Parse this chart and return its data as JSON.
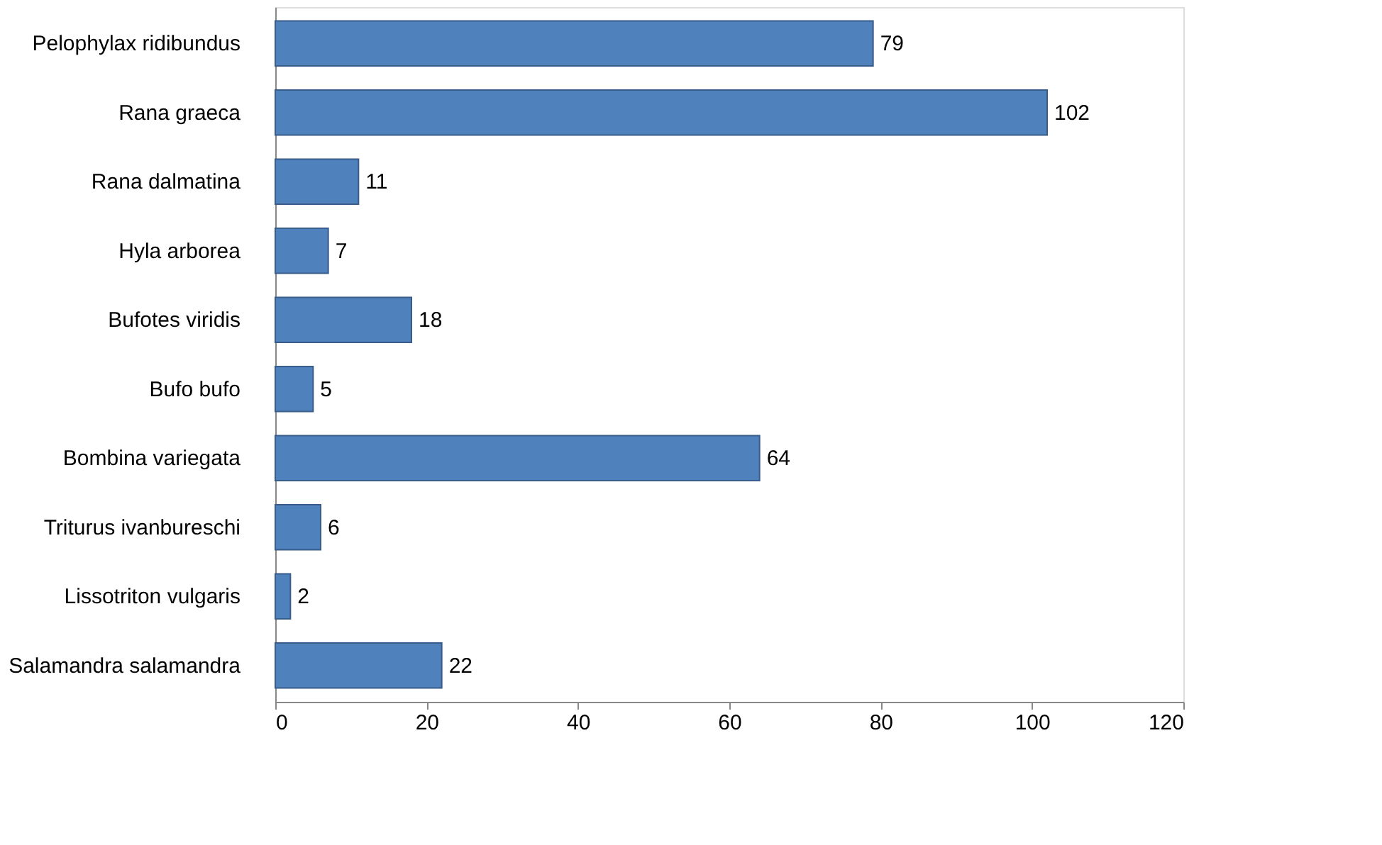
{
  "chart_data": {
    "type": "bar",
    "orientation": "horizontal",
    "categories": [
      "Pelophylax ridibundus",
      "Rana graeca",
      "Rana dalmatina",
      "Hyla arborea",
      "Bufotes viridis",
      "Bufo bufo",
      "Bombina variegata",
      "Triturus ivanbureschi",
      "Lissotriton vulgaris",
      "Salamandra salamandra"
    ],
    "values": [
      79,
      102,
      11,
      7,
      18,
      5,
      64,
      6,
      2,
      22
    ],
    "color": "#4f81bd",
    "xlim": [
      0,
      120
    ],
    "xticks": [
      0,
      20,
      40,
      60,
      80,
      100,
      120
    ],
    "data_labels": true,
    "grid": false
  }
}
